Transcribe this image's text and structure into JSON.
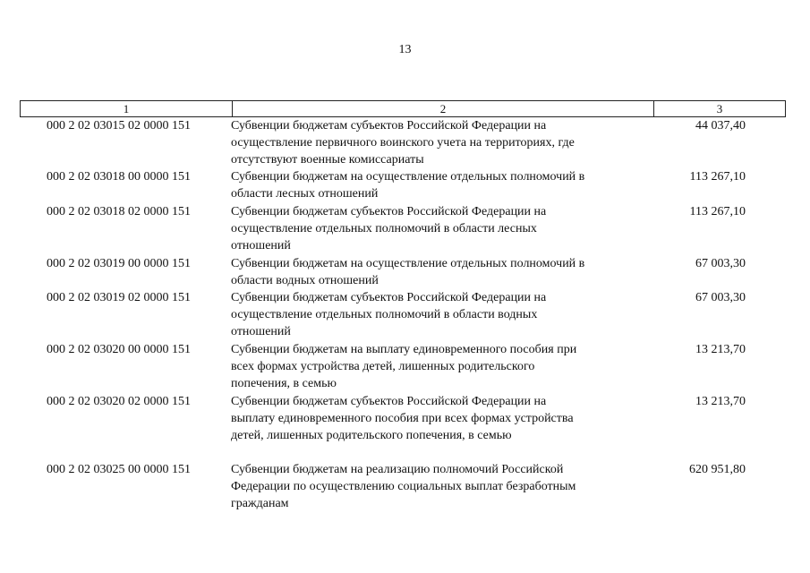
{
  "page_number": "13",
  "table": {
    "headers": [
      "1",
      "2",
      "3"
    ],
    "rows": [
      {
        "code": "000 2 02 03015 02 0000 151",
        "lines": [
          "Субвенции бюджетам субъектов Российской Федерации на",
          "осуществление первичного воинского учета на территориях, где",
          "отсутствуют военные комиссариаты"
        ],
        "value": "44 037,40"
      },
      {
        "code": "000 2 02 03018 00 0000 151",
        "lines": [
          "Субвенции бюджетам на осуществление отдельных полномочий в",
          "области лесных отношений"
        ],
        "value": "113 267,10"
      },
      {
        "code": "000 2 02 03018 02 0000 151",
        "lines": [
          "Субвенции бюджетам субъектов Российской Федерации на",
          "осуществление отдельных полномочий в области лесных",
          "отношений"
        ],
        "value": "113 267,10"
      },
      {
        "code": "000 2 02 03019 00 0000 151",
        "lines": [
          "Субвенции бюджетам на осуществление отдельных полномочий в",
          "области водных отношений"
        ],
        "value": "67 003,30"
      },
      {
        "code": "000 2 02 03019 02 0000 151",
        "lines": [
          "Субвенции бюджетам субъектов Российской Федерации на",
          "осуществление отдельных полномочий в области водных",
          "отношений"
        ],
        "value": "67 003,30"
      },
      {
        "code": "000 2 02 03020 00 0000 151",
        "lines": [
          "Субвенции бюджетам на выплату единовременного пособия при",
          "всех формах устройства детей, лишенных родительского",
          "попечения, в семью"
        ],
        "value": "13 213,70"
      },
      {
        "code": "000 2 02 03020 02 0000 151",
        "lines": [
          "Субвенции бюджетам субъектов Российской Федерации на",
          "выплату единовременного пособия при всех формах устройства",
          "детей, лишенных родительского попечения, в семью"
        ],
        "value": "13 213,70"
      },
      {
        "code": "000 2 02 03025 00 0000 151",
        "lines": [
          "Субвенции бюджетам на реализацию полномочий Российской",
          "Федерации по осуществлению социальных выплат безработным",
          "гражданам"
        ],
        "value": "620 951,80"
      }
    ]
  }
}
